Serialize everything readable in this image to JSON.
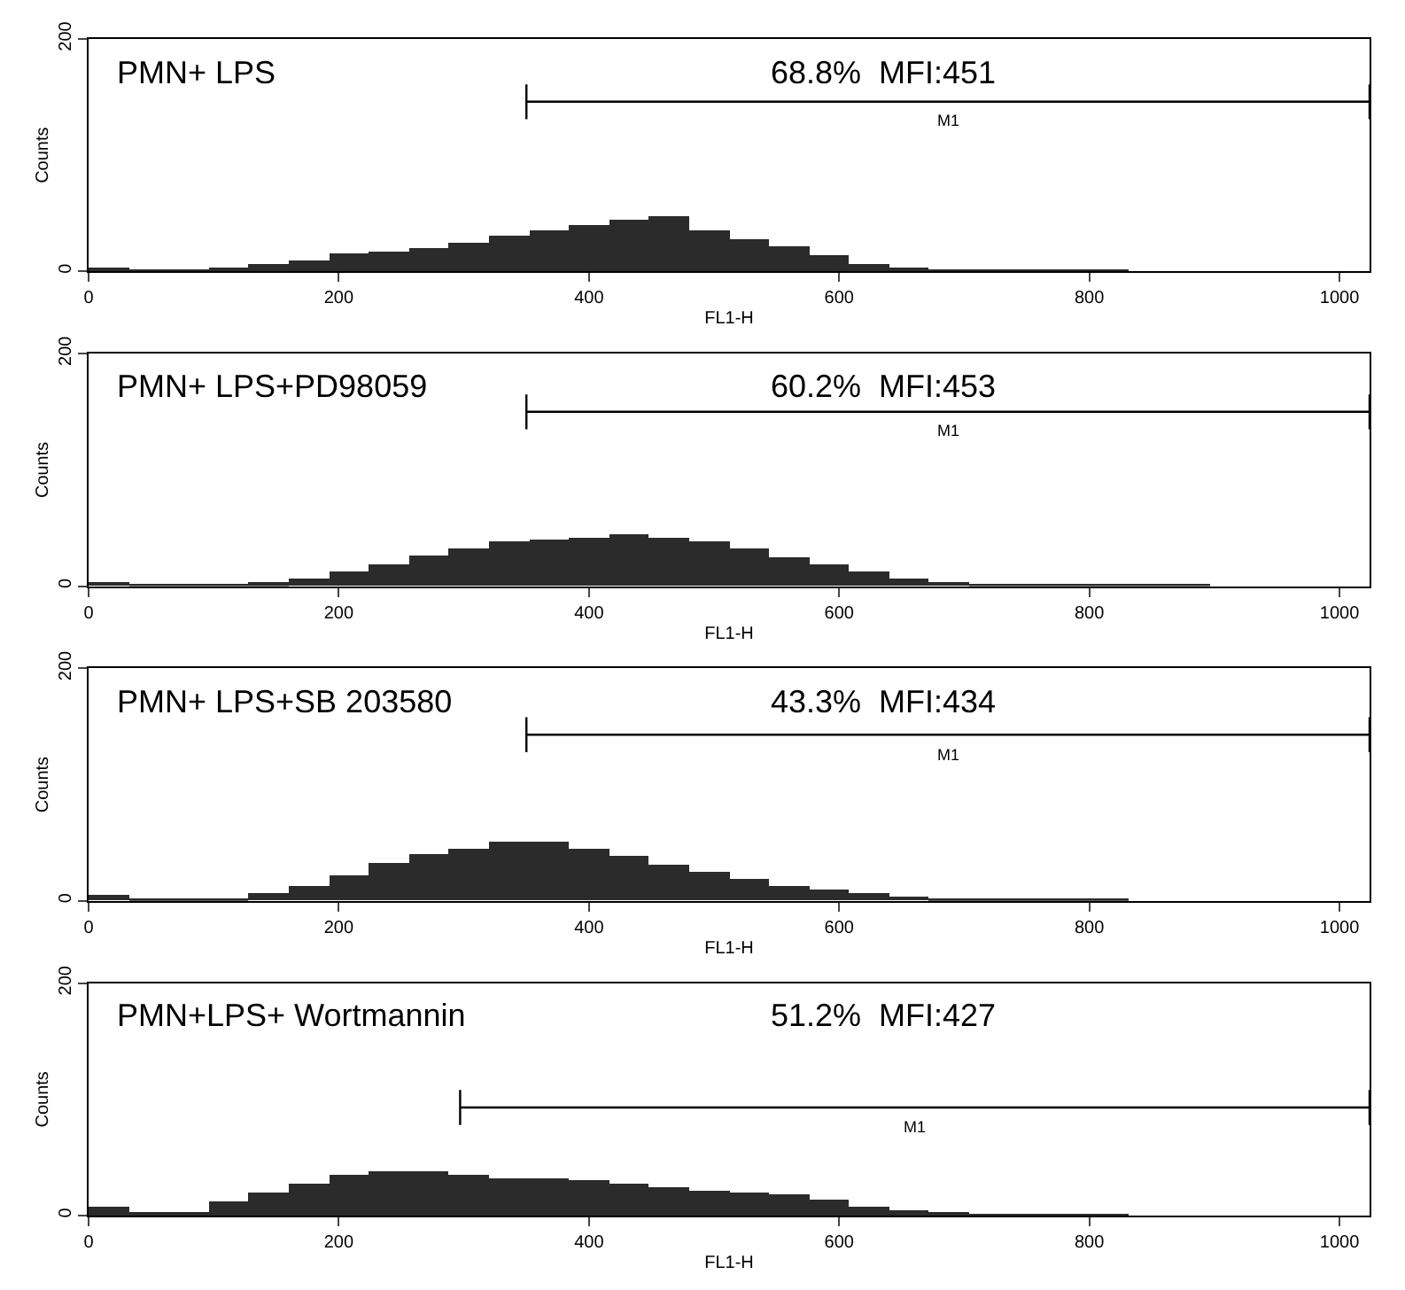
{
  "chart_data": [
    {
      "type": "histogram",
      "xlabel": "FL1-H",
      "ylabel": "Counts",
      "color": "#2b2b2b",
      "xlim": [
        0,
        1024
      ],
      "ylim": [
        0,
        200
      ],
      "xticks": [
        0,
        200,
        400,
        600,
        800,
        1000
      ],
      "yticks": [
        0,
        200
      ],
      "bins": [
        0,
        32,
        64,
        96,
        128,
        160,
        192,
        224,
        256,
        288,
        320,
        352,
        384,
        416,
        448,
        480,
        512,
        544,
        576,
        608,
        640,
        672,
        704,
        736,
        768,
        800,
        832,
        864,
        896,
        928,
        960,
        992,
        1024
      ],
      "values": [
        3,
        2,
        2,
        3,
        6,
        9,
        15,
        17,
        20,
        25,
        30,
        36,
        40,
        45,
        47,
        35,
        28,
        22,
        14,
        6,
        3,
        2,
        1,
        1,
        1,
        1,
        0,
        0,
        0,
        0,
        0,
        0
      ],
      "series": [
        {
          "type": "line",
          "name": "M1",
          "color": "#000000",
          "x": [
            350,
            1024
          ],
          "values": [
            146,
            146
          ],
          "errors": [
            15,
            15
          ]
        }
      ],
      "annotations": [
        "PMN+ LPS",
        "68.8%  MFI:451"
      ]
    },
    {
      "type": "histogram",
      "xlabel": "FL1-H",
      "ylabel": "Counts",
      "color": "#2b2b2b",
      "xlim": [
        0,
        1024
      ],
      "ylim": [
        0,
        200
      ],
      "xticks": [
        0,
        200,
        400,
        600,
        800,
        1000
      ],
      "yticks": [
        0,
        200
      ],
      "bins": [
        0,
        32,
        64,
        96,
        128,
        160,
        192,
        224,
        256,
        288,
        320,
        352,
        384,
        416,
        448,
        480,
        512,
        544,
        576,
        608,
        640,
        672,
        704,
        736,
        768,
        800,
        832,
        864,
        896,
        928,
        960,
        992,
        1024
      ],
      "values": [
        4,
        2,
        2,
        2,
        3,
        6,
        12,
        18,
        26,
        33,
        38,
        40,
        42,
        44,
        42,
        38,
        33,
        25,
        18,
        12,
        7,
        4,
        2,
        2,
        1,
        1,
        1,
        1,
        0,
        0,
        0,
        0
      ],
      "series": [
        {
          "type": "line",
          "name": "M1",
          "color": "#000000",
          "x": [
            350,
            1024
          ],
          "values": [
            150,
            150
          ],
          "errors": [
            15,
            15
          ]
        }
      ],
      "annotations": [
        "PMN+ LPS+PD98059",
        "60.2%  MFI:453"
      ]
    },
    {
      "type": "histogram",
      "xlabel": "FL1-H",
      "ylabel": "Counts",
      "color": "#2b2b2b",
      "xlim": [
        0,
        1024
      ],
      "ylim": [
        0,
        200
      ],
      "xticks": [
        0,
        200,
        400,
        600,
        800,
        1000
      ],
      "yticks": [
        0,
        200
      ],
      "bins": [
        0,
        32,
        64,
        96,
        128,
        160,
        192,
        224,
        256,
        288,
        320,
        352,
        384,
        416,
        448,
        480,
        512,
        544,
        576,
        608,
        640,
        672,
        704,
        736,
        768,
        800,
        832,
        864,
        896,
        928,
        960,
        992,
        1024
      ],
      "values": [
        5,
        1,
        1,
        2,
        6,
        12,
        22,
        32,
        40,
        45,
        50,
        50,
        45,
        38,
        30,
        24,
        18,
        13,
        10,
        7,
        4,
        2,
        1,
        1,
        1,
        1,
        0,
        0,
        0,
        0,
        0,
        0
      ],
      "series": [
        {
          "type": "line",
          "name": "M1",
          "color": "#000000",
          "x": [
            350,
            1024
          ],
          "values": [
            143,
            143
          ],
          "errors": [
            15,
            15
          ]
        }
      ],
      "annotations": [
        "PMN+ LPS+SB 203580",
        "43.3%  MFI:434"
      ]
    },
    {
      "type": "histogram",
      "xlabel": "FL1-H",
      "ylabel": "Counts",
      "color": "#2b2b2b",
      "xlim": [
        0,
        1024
      ],
      "ylim": [
        0,
        200
      ],
      "xticks": [
        0,
        200,
        400,
        600,
        800,
        1000
      ],
      "yticks": [
        0,
        200
      ],
      "bins": [
        0,
        32,
        64,
        96,
        128,
        160,
        192,
        224,
        256,
        288,
        320,
        352,
        384,
        416,
        448,
        480,
        512,
        544,
        576,
        608,
        640,
        672,
        704,
        736,
        768,
        800,
        832,
        864,
        896,
        928,
        960,
        992,
        1024
      ],
      "values": [
        8,
        3,
        4,
        12,
        20,
        28,
        35,
        38,
        38,
        36,
        33,
        32,
        30,
        28,
        25,
        22,
        20,
        18,
        14,
        8,
        5,
        3,
        2,
        1,
        1,
        1,
        0,
        0,
        0,
        0,
        0,
        0
      ],
      "series": [
        {
          "type": "line",
          "name": "M1",
          "color": "#000000",
          "x": [
            297,
            1024
          ],
          "values": [
            93,
            93
          ],
          "errors": [
            15,
            15
          ]
        }
      ],
      "annotations": [
        "PMN+LPS+ Wortmannin",
        "51.2%  MFI:427"
      ]
    }
  ]
}
